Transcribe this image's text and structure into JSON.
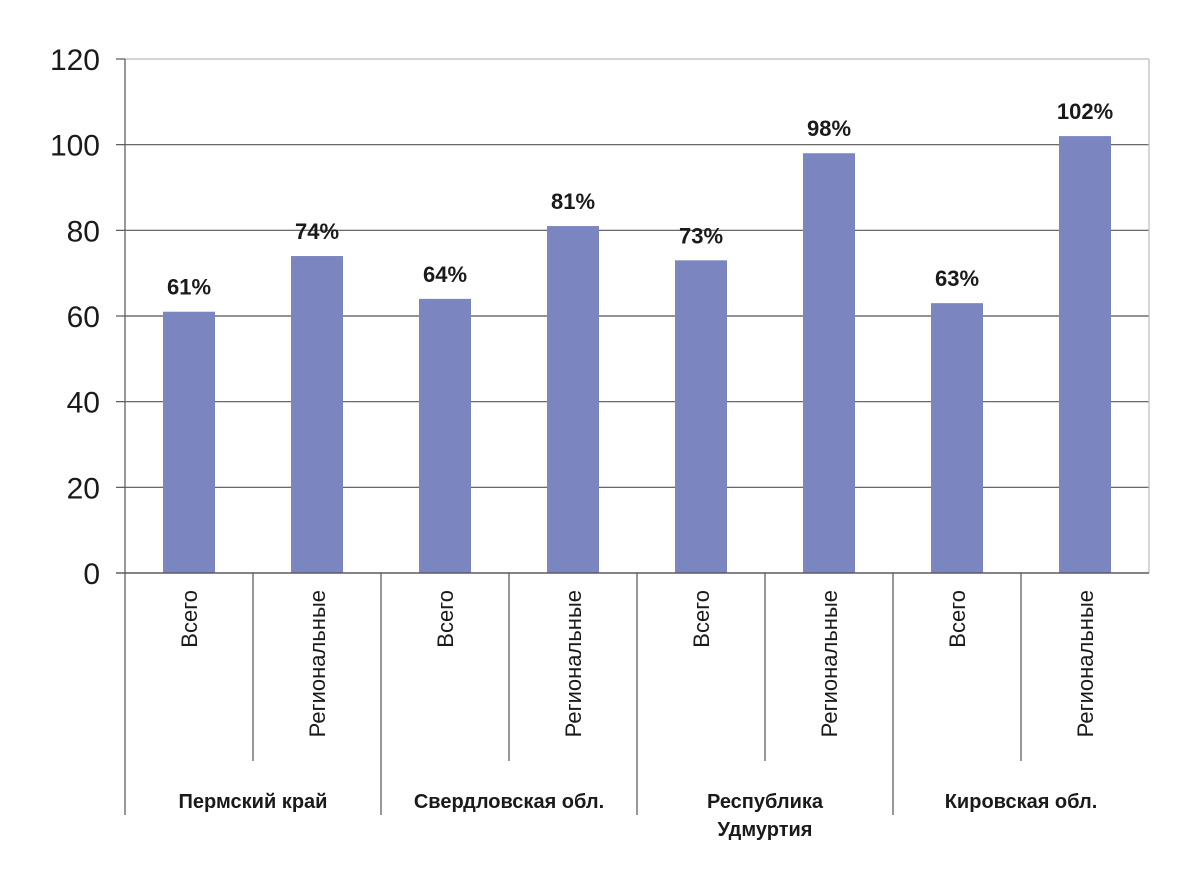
{
  "chart_data": {
    "type": "bar",
    "title": "",
    "xlabel": "",
    "ylabel": "",
    "ylim": [
      0,
      120
    ],
    "yticks": [
      "0",
      "20",
      "40",
      "60",
      "80",
      "100",
      "120"
    ],
    "grid": true,
    "bar_color": "#7b86c0",
    "groups": [
      {
        "label_lines": [
          "Пермский край"
        ]
      },
      {
        "label_lines": [
          "Свердловская обл."
        ]
      },
      {
        "label_lines": [
          "Республика",
          "Удмуртия"
        ]
      },
      {
        "label_lines": [
          "Кировская обл."
        ]
      }
    ],
    "categories": [
      "Всего",
      "Региональные",
      "Всего",
      "Региональные",
      "Всего",
      "Региональные",
      "Всего",
      "Региональные"
    ],
    "values": [
      61,
      74,
      64,
      81,
      73,
      98,
      63,
      102
    ],
    "data_labels": [
      "61%",
      "74%",
      "64%",
      "81%",
      "73%",
      "98%",
      "63%",
      "102%"
    ]
  }
}
